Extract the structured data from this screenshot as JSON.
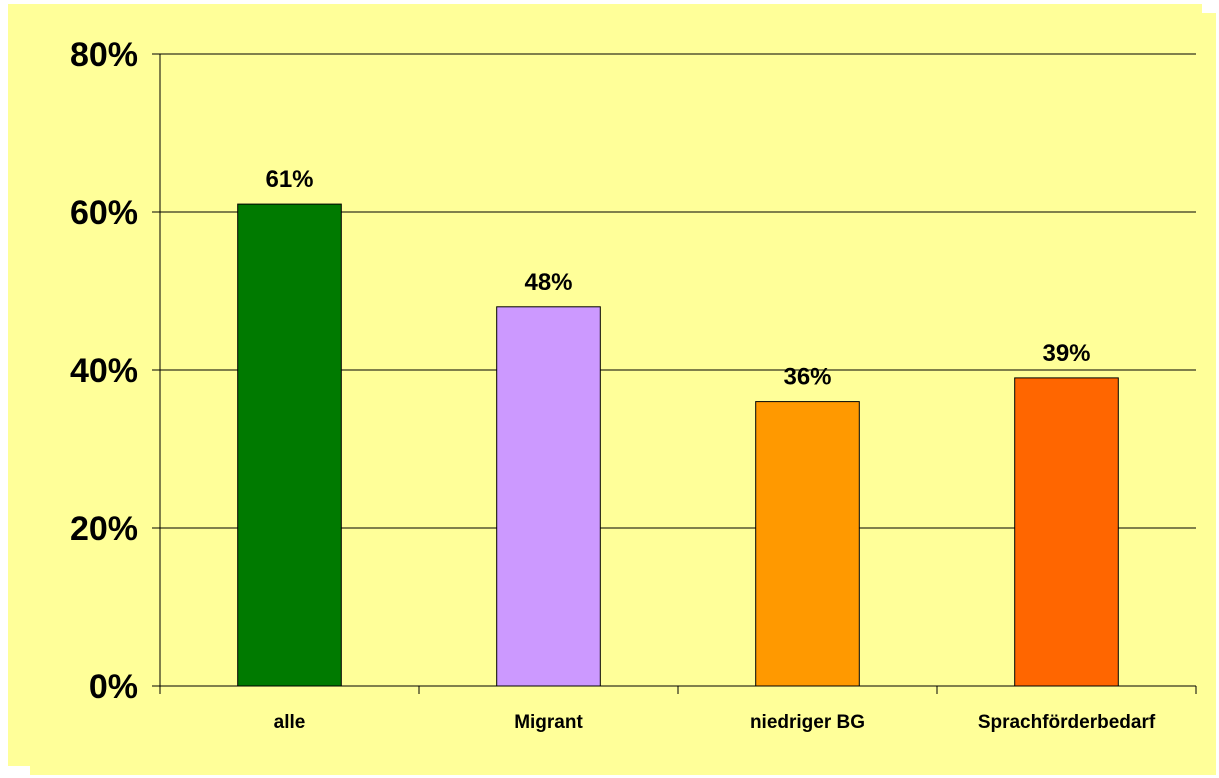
{
  "chart_data": {
    "type": "bar",
    "categories": [
      "alle",
      "Migrant",
      "niedriger BG",
      "Sprachförderbedarf"
    ],
    "values": [
      61,
      48,
      36,
      39
    ],
    "data_labels": [
      "61%",
      "48%",
      "36%",
      "39%"
    ],
    "colors": [
      "#007a00",
      "#cc99ff",
      "#ff9900",
      "#ff6600"
    ],
    "ylim": [
      0,
      80
    ],
    "yticks": [
      0,
      20,
      40,
      60,
      80
    ],
    "ytick_labels": [
      "0%",
      "20%",
      "40%",
      "60%",
      "80%"
    ],
    "grid": true,
    "background": "#ffff99",
    "title": "",
    "xlabel": "",
    "ylabel": ""
  }
}
